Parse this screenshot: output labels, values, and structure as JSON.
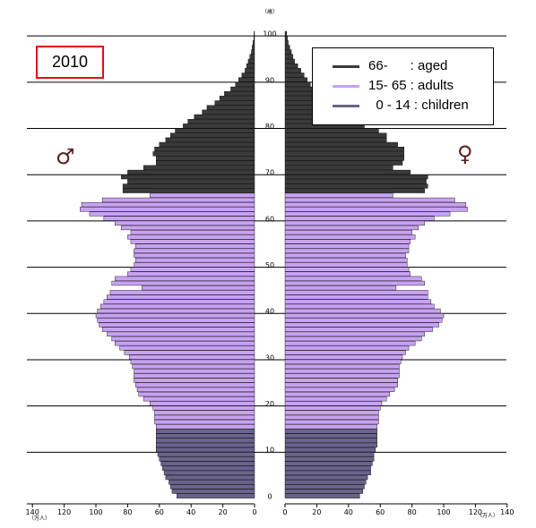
{
  "chart_data": {
    "type": "bar",
    "orientation": "horizontal",
    "year_label": "2010",
    "y_axis_unit": "（歳）",
    "x_axis_unit": "（万人）",
    "x_ticks_male": [
      140,
      120,
      100,
      80,
      60,
      40,
      20,
      0
    ],
    "x_ticks_female": [
      0,
      20,
      40,
      60,
      80,
      100,
      120,
      140
    ],
    "y_ticks": [
      0,
      10,
      20,
      30,
      40,
      50,
      60,
      70,
      80,
      90,
      100
    ],
    "xlim": [
      0,
      140
    ],
    "ylim": [
      0,
      100
    ],
    "grid": "horizontal lines every 10 years",
    "legend_placement": "top-right",
    "male_symbol": "♂",
    "female_symbol": "♀",
    "age_groups": [
      {
        "name": "aged",
        "label": "66-      : aged",
        "min_age": 66,
        "color": "#3a3a3a"
      },
      {
        "name": "adults",
        "label": "15- 65 : adults",
        "min_age": 15,
        "color": "#c8a2f2"
      },
      {
        "name": "children",
        "label": "  0 - 14 : children",
        "min_age": 0,
        "color": "#6a638c"
      }
    ],
    "ages": [
      0,
      1,
      2,
      3,
      4,
      5,
      6,
      7,
      8,
      9,
      10,
      11,
      12,
      13,
      14,
      15,
      16,
      17,
      18,
      19,
      20,
      21,
      22,
      23,
      24,
      25,
      26,
      27,
      28,
      29,
      30,
      31,
      32,
      33,
      34,
      35,
      36,
      37,
      38,
      39,
      40,
      41,
      42,
      43,
      44,
      45,
      46,
      47,
      48,
      49,
      50,
      51,
      52,
      53,
      54,
      55,
      56,
      57,
      58,
      59,
      60,
      61,
      62,
      63,
      64,
      65,
      66,
      67,
      68,
      69,
      70,
      71,
      72,
      73,
      74,
      75,
      76,
      77,
      78,
      79,
      80,
      81,
      82,
      83,
      84,
      85,
      86,
      87,
      88,
      89,
      90,
      91,
      92,
      93,
      94,
      95,
      96,
      97,
      98,
      99,
      100
    ],
    "male": [
      49,
      52,
      53,
      54,
      56,
      57,
      58,
      59,
      60,
      61,
      62,
      62,
      62,
      62,
      62,
      62,
      63,
      63,
      63,
      64,
      66,
      70,
      73,
      74,
      75,
      76,
      76,
      76,
      77,
      78,
      79,
      82,
      85,
      88,
      90,
      93,
      96,
      98,
      99,
      100,
      99,
      97,
      95,
      93,
      91,
      71,
      90,
      88,
      80,
      78,
      76,
      75,
      76,
      76,
      75,
      78,
      80,
      78,
      84,
      88,
      95,
      104,
      110,
      109,
      96,
      66,
      83,
      83,
      80,
      84,
      80,
      70,
      62,
      62,
      64,
      63,
      60,
      56,
      53,
      50,
      45,
      42,
      38,
      33,
      30,
      25,
      22,
      19,
      15,
      12,
      10,
      8,
      6,
      5,
      4,
      3,
      2,
      1.5,
      1,
      0.5,
      0.3
    ],
    "female": [
      47,
      49,
      50,
      51,
      52,
      54,
      54,
      55,
      56,
      56,
      57,
      58,
      58,
      58,
      58,
      58,
      59,
      59,
      59,
      60,
      61,
      64,
      66,
      69,
      71,
      71,
      72,
      72,
      72,
      73,
      74,
      76,
      78,
      82,
      86,
      88,
      93,
      97,
      99,
      100,
      98,
      94,
      92,
      90,
      90,
      70,
      88,
      86,
      79,
      78,
      77,
      77,
      76,
      78,
      78,
      79,
      82,
      80,
      84,
      88,
      94,
      104,
      115,
      114,
      107,
      68,
      88,
      90,
      89,
      90,
      79,
      68,
      74,
      75,
      75,
      75,
      71,
      64,
      64,
      59,
      50,
      50,
      44,
      40,
      36,
      32,
      28,
      24,
      20,
      16,
      14,
      12,
      10,
      8,
      6,
      5,
      4,
      3,
      2,
      1.5,
      1
    ]
  }
}
